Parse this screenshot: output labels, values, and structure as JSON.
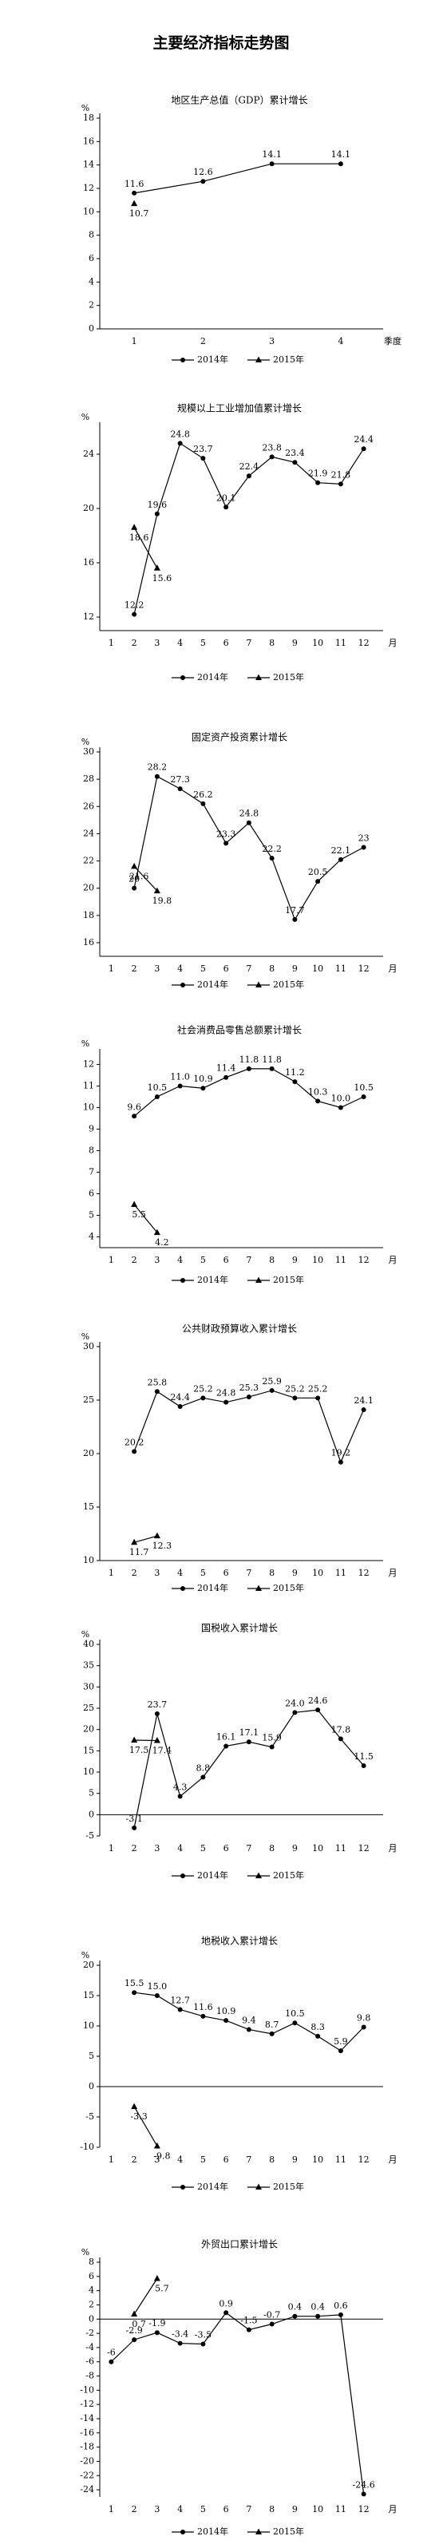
{
  "title": "主要经济指标走势图",
  "chart_data": [
    {
      "type": "line",
      "title": "地区生产总值（GDP）累计增长",
      "categories": [
        1,
        2,
        3,
        4
      ],
      "x_label": "季度",
      "y_label": "%",
      "ylim": [
        0,
        18
      ],
      "yticks": [
        0,
        2,
        4,
        6,
        8,
        10,
        12,
        14,
        16,
        18
      ],
      "series": [
        {
          "name": "2014年",
          "color": "#000000",
          "marker": "circle",
          "values": [
            11.6,
            12.6,
            14.1,
            14.1
          ]
        },
        {
          "name": "2015年",
          "color": "#000000",
          "marker": "triangle",
          "values": [
            10.7,
            null,
            null,
            null
          ]
        }
      ]
    },
    {
      "type": "line",
      "title": "规模以上工业增加值累计增长",
      "categories": [
        1,
        2,
        3,
        4,
        5,
        6,
        7,
        8,
        9,
        10,
        11,
        12
      ],
      "x_label": "月",
      "y_label": "%",
      "ylim": [
        11,
        26
      ],
      "yticks": [
        12,
        16,
        20,
        24
      ],
      "series": [
        {
          "name": "2014年",
          "color": "#000000",
          "marker": "circle",
          "values": [
            null,
            12.2,
            19.6,
            24.8,
            23.7,
            20.1,
            22.4,
            23.8,
            23.4,
            21.9,
            21.8,
            24.4
          ]
        },
        {
          "name": "2015年",
          "color": "#000000",
          "marker": "triangle",
          "values": [
            null,
            18.6,
            15.6,
            null,
            null,
            null,
            null,
            null,
            null,
            null,
            null,
            null
          ]
        }
      ]
    },
    {
      "type": "line",
      "title": "固定资产投资累计增长",
      "categories": [
        1,
        2,
        3,
        4,
        5,
        6,
        7,
        8,
        9,
        10,
        11,
        12
      ],
      "x_label": "月",
      "y_label": "%",
      "ylim": [
        15,
        30
      ],
      "yticks": [
        16,
        18,
        20,
        22,
        24,
        26,
        28,
        30
      ],
      "series": [
        {
          "name": "2014年",
          "color": "#000000",
          "marker": "circle",
          "values": [
            null,
            20,
            28.2,
            27.3,
            26.2,
            23.3,
            24.8,
            22.2,
            17.7,
            20.5,
            22.1,
            23
          ]
        },
        {
          "name": "2015年",
          "color": "#000000",
          "marker": "triangle",
          "values": [
            null,
            21.6,
            19.8,
            null,
            null,
            null,
            null,
            null,
            null,
            null,
            null,
            null
          ]
        }
      ]
    },
    {
      "type": "line",
      "title": "社会消费品零售总额累计增长",
      "categories": [
        1,
        2,
        3,
        4,
        5,
        6,
        7,
        8,
        9,
        10,
        11,
        12
      ],
      "x_label": "月",
      "y_label": "%",
      "ylim": [
        3.5,
        12.5
      ],
      "yticks": [
        4,
        5,
        6,
        7,
        8,
        9,
        10,
        11,
        12
      ],
      "series": [
        {
          "name": "2014年",
          "color": "#000000",
          "marker": "circle",
          "values": [
            null,
            9.6,
            10.5,
            11.0,
            10.9,
            11.4,
            11.8,
            11.8,
            11.2,
            10.3,
            10.0,
            10.5
          ],
          "value_labels": [
            null,
            "9.6",
            "10.5",
            "11.0",
            "10.9",
            "11.4",
            "11.8",
            "11.8",
            "11.2",
            "10.3",
            "10.0",
            "10.5"
          ]
        },
        {
          "name": "2015年",
          "color": "#000000",
          "marker": "triangle",
          "values": [
            null,
            5.5,
            4.2,
            null,
            null,
            null,
            null,
            null,
            null,
            null,
            null,
            null
          ]
        }
      ]
    },
    {
      "type": "line",
      "title": "公共财政预算收入累计增长",
      "categories": [
        1,
        2,
        3,
        4,
        5,
        6,
        7,
        8,
        9,
        10,
        11,
        12
      ],
      "x_label": "月",
      "y_label": "%",
      "ylim": [
        10,
        30
      ],
      "yticks": [
        10,
        15,
        20,
        25,
        30
      ],
      "series": [
        {
          "name": "2014年",
          "color": "#000000",
          "marker": "circle",
          "values": [
            null,
            20.2,
            25.8,
            24.4,
            25.2,
            24.8,
            25.3,
            25.9,
            25.2,
            25.2,
            19.2,
            24.1
          ]
        },
        {
          "name": "2015年",
          "color": "#000000",
          "marker": "triangle",
          "values": [
            null,
            11.7,
            12.3,
            null,
            null,
            null,
            null,
            null,
            null,
            null,
            null,
            null
          ]
        }
      ]
    },
    {
      "type": "line",
      "title": "国税收入累计增长",
      "categories": [
        1,
        2,
        3,
        4,
        5,
        6,
        7,
        8,
        9,
        10,
        11,
        12
      ],
      "x_label": "月",
      "y_label": "%",
      "ylim": [
        -5,
        40
      ],
      "yticks": [
        -5,
        0,
        5,
        10,
        15,
        20,
        25,
        30,
        35,
        40
      ],
      "series": [
        {
          "name": "2014年",
          "color": "#000000",
          "marker": "circle",
          "values": [
            null,
            -3.1,
            23.7,
            4.3,
            8.8,
            16.1,
            17.1,
            15.9,
            24.0,
            24.6,
            17.8,
            11.5
          ],
          "value_labels": [
            null,
            "-3.1",
            "23.7",
            "4.3",
            "8.8",
            "16.1",
            "17.1",
            "15.9",
            "24.0",
            "24.6",
            "17.8",
            "11.5"
          ]
        },
        {
          "name": "2015年",
          "color": "#000000",
          "marker": "triangle",
          "values": [
            null,
            17.5,
            17.4,
            null,
            null,
            null,
            null,
            null,
            null,
            null,
            null,
            null
          ]
        }
      ]
    },
    {
      "type": "line",
      "title": "地税收入累计增长",
      "categories": [
        1,
        2,
        3,
        4,
        5,
        6,
        7,
        8,
        9,
        10,
        11,
        12
      ],
      "x_label": "月",
      "y_label": "%",
      "ylim": [
        -10,
        20
      ],
      "yticks": [
        -10,
        -5,
        0,
        5,
        10,
        15,
        20
      ],
      "series": [
        {
          "name": "2014年",
          "color": "#000000",
          "marker": "circle",
          "values": [
            null,
            15.5,
            15.0,
            12.7,
            11.6,
            10.9,
            9.4,
            8.7,
            10.5,
            8.3,
            5.9,
            9.8
          ],
          "value_labels": [
            null,
            "15.5",
            "15.0",
            "12.7",
            "11.6",
            "10.9",
            "9.4",
            "8.7",
            "10.5",
            "8.3",
            "5.9",
            "9.8"
          ]
        },
        {
          "name": "2015年",
          "color": "#000000",
          "marker": "triangle",
          "values": [
            null,
            -3.3,
            -9.8,
            null,
            null,
            null,
            null,
            null,
            null,
            null,
            null,
            null
          ]
        }
      ]
    },
    {
      "type": "line",
      "title": "外贸出口累计增长",
      "categories": [
        1,
        2,
        3,
        4,
        5,
        6,
        7,
        8,
        9,
        10,
        11,
        12
      ],
      "x_label": "月",
      "y_label": "%",
      "ylim": [
        -25,
        8
      ],
      "yticks": [
        -24,
        -22,
        -20,
        -18,
        -16,
        -14,
        -12,
        -10,
        -8,
        -6,
        -4,
        -2,
        0,
        2,
        4,
        6,
        8
      ],
      "series": [
        {
          "name": "2014年",
          "color": "#000000",
          "marker": "circle",
          "values": [
            -6,
            -2.9,
            -1.9,
            -3.4,
            -3.5,
            0.9,
            -1.5,
            -0.7,
            0.4,
            0.4,
            0.6,
            -24.6
          ]
        },
        {
          "name": "2015年",
          "color": "#000000",
          "marker": "triangle",
          "values": [
            null,
            0.7,
            5.7,
            null,
            null,
            null,
            null,
            null,
            null,
            null,
            null,
            null
          ]
        }
      ]
    }
  ]
}
